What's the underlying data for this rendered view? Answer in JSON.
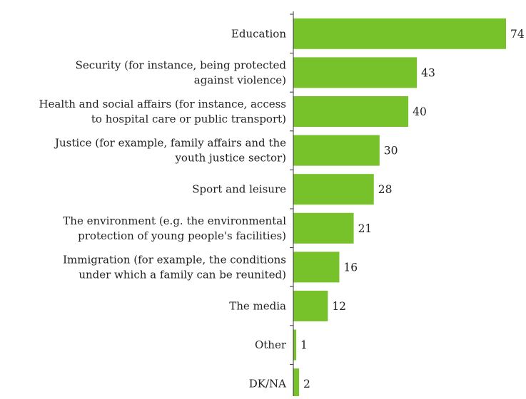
{
  "chart_data": {
    "type": "bar",
    "orientation": "horizontal",
    "categories": [
      [
        "Education"
      ],
      [
        "Security (for instance, being protected",
        "against violence)"
      ],
      [
        "Health and social affairs (for instance, access",
        "to hospital care or public transport)"
      ],
      [
        "Justice (for example, family affairs and the",
        "youth justice sector)"
      ],
      [
        "Sport and leisure"
      ],
      [
        "The environment (e.g. the environmental",
        "protection of young people's facilities)"
      ],
      [
        "Immigration (for example, the conditions",
        "under which a family can be reunited)"
      ],
      [
        "The media"
      ],
      [
        "Other"
      ],
      [
        "DK/NA"
      ]
    ],
    "values": [
      74,
      43,
      40,
      30,
      28,
      21,
      16,
      12,
      1,
      2
    ],
    "value_labels": [
      "74",
      "43",
      "40",
      "30",
      "28",
      "21",
      "16",
      "12",
      "1",
      "2"
    ],
    "xlim": [
      0,
      74
    ],
    "bar_color": "#77c12a",
    "axis_color": "#333333",
    "grid": false,
    "legend": "none",
    "title": "",
    "xlabel": "",
    "ylabel": ""
  }
}
